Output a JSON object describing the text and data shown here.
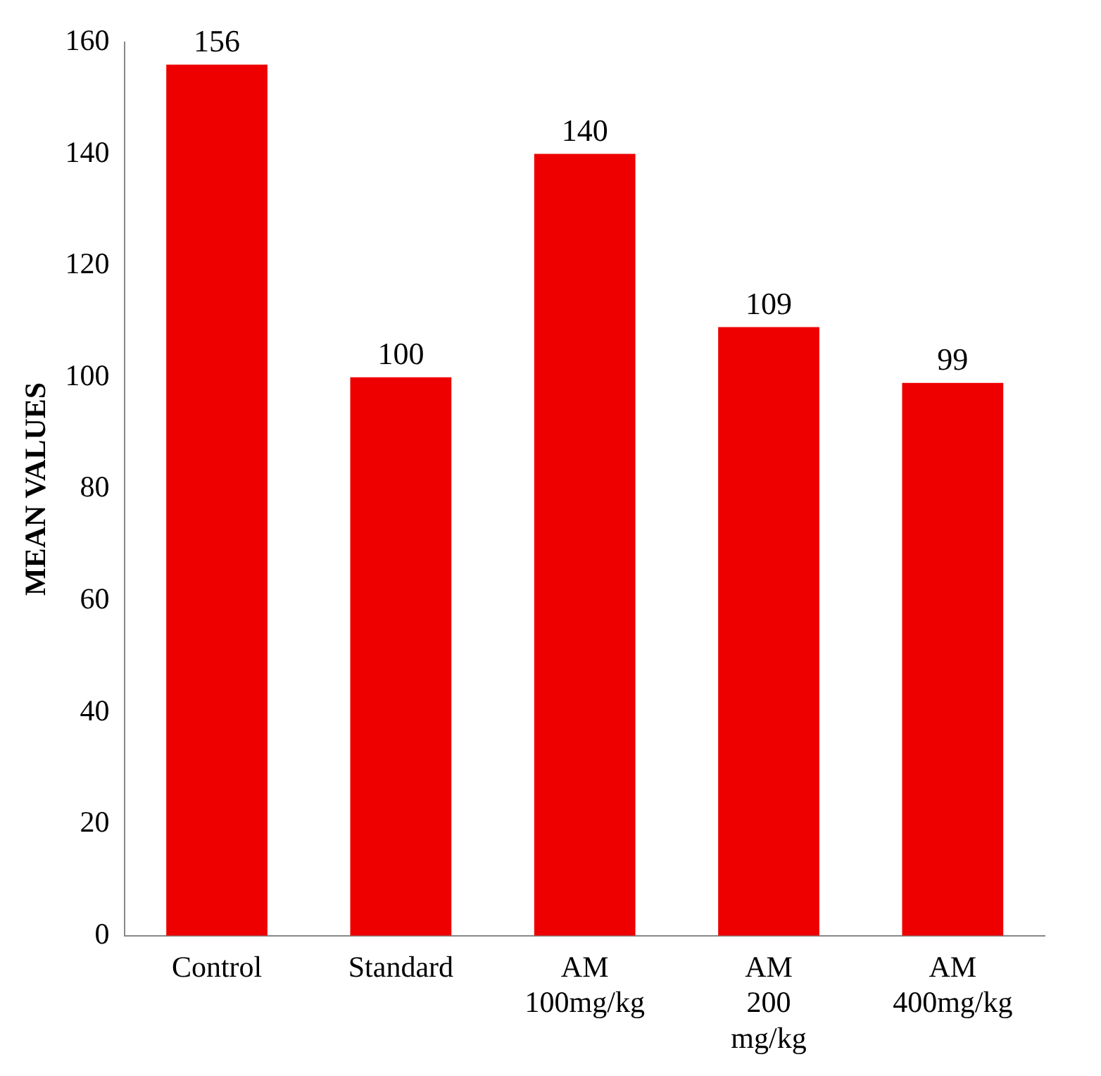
{
  "chart_data": {
    "type": "bar",
    "ylabel": "MEAN VALUES",
    "categories": [
      "Control",
      "Standard",
      "AM 100mg/kg",
      "AM 200 mg/kg",
      "AM 400mg/kg"
    ],
    "values": [
      156,
      100,
      140,
      109,
      99
    ],
    "color": "#ee0000",
    "ylim": [
      0,
      160
    ],
    "yticks": [
      0,
      20,
      40,
      60,
      80,
      100,
      120,
      140,
      160
    ],
    "grid": false,
    "data_labels": true
  }
}
